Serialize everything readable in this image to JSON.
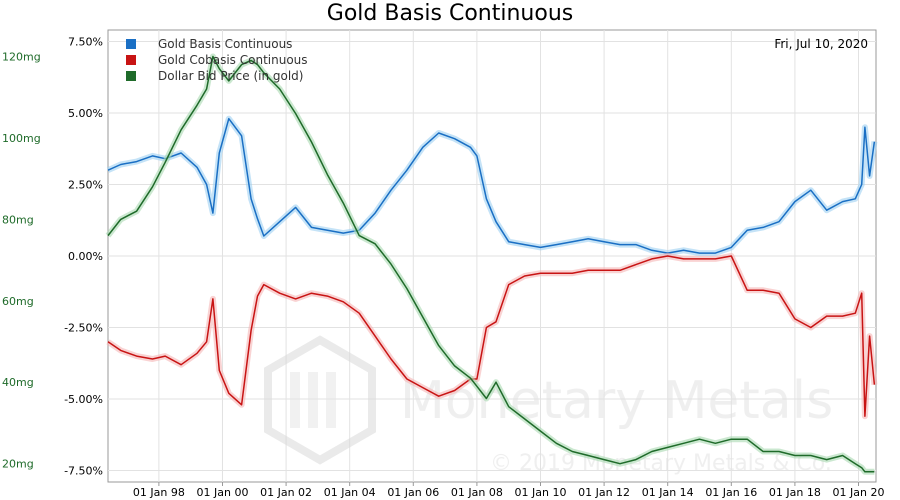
{
  "chart_data": {
    "type": "line",
    "title": "Gold Basis Continuous",
    "date_label": "Fri, Jul 10, 2020",
    "watermark": {
      "brand": "Monetary Metals",
      "copyright": "© 2019 Monetary Metals & Co."
    },
    "x_ticks": [
      "01 Jan 98",
      "01 Jan 00",
      "01 Jan 02",
      "01 Jan 04",
      "01 Jan 06",
      "01 Jan 08",
      "01 Jan 10",
      "01 Jan 12",
      "01 Jan 14",
      "01 Jan 16",
      "01 Jan 18",
      "01 Jan 20"
    ],
    "xlim": [
      1996.4,
      2020.55
    ],
    "y_right": {
      "ticks": [
        "7.50%",
        "5.00%",
        "2.50%",
        "0.00%",
        "-2.50%",
        "-5.00%",
        "-7.50%"
      ],
      "tick_values": [
        7.5,
        5.0,
        2.5,
        0.0,
        -2.5,
        -5.0,
        -7.5
      ],
      "range": [
        -7.9,
        7.9
      ]
    },
    "y_left": {
      "ticks": [
        "120mg",
        "100mg",
        "80mg",
        "60mg",
        "40mg",
        "20mg"
      ],
      "tick_values": [
        120,
        100,
        80,
        60,
        40,
        20
      ],
      "range": [
        15.5,
        126.5
      ]
    },
    "series": [
      {
        "name": "Gold Basis Continuous",
        "color": "#1a6fc4",
        "axis": "right",
        "x": [
          1996.4,
          1996.8,
          1997.3,
          1997.8,
          1998.2,
          1998.7,
          1999.2,
          1999.5,
          1999.7,
          1999.9,
          2000.2,
          2000.6,
          2000.9,
          2001.1,
          2001.3,
          2001.8,
          2002.3,
          2002.8,
          2003.3,
          2003.8,
          2004.3,
          2004.8,
          2005.3,
          2005.8,
          2006.3,
          2006.8,
          2007.3,
          2007.8,
          2008.0,
          2008.3,
          2008.6,
          2009.0,
          2009.5,
          2010.0,
          2010.5,
          2011.0,
          2011.5,
          2012.0,
          2012.5,
          2013.0,
          2013.5,
          2014.0,
          2014.5,
          2015.0,
          2015.5,
          2016.0,
          2016.5,
          2017.0,
          2017.5,
          2018.0,
          2018.5,
          2019.0,
          2019.5,
          2019.9,
          2020.1,
          2020.2,
          2020.35,
          2020.5
        ],
        "y": [
          3.0,
          3.2,
          3.3,
          3.5,
          3.4,
          3.6,
          3.1,
          2.5,
          1.5,
          3.6,
          4.8,
          4.2,
          2.0,
          1.3,
          0.7,
          1.2,
          1.7,
          1.0,
          0.9,
          0.8,
          0.9,
          1.5,
          2.3,
          3.0,
          3.8,
          4.3,
          4.1,
          3.8,
          3.5,
          2.0,
          1.2,
          0.5,
          0.4,
          0.3,
          0.4,
          0.5,
          0.6,
          0.5,
          0.4,
          0.4,
          0.2,
          0.1,
          0.2,
          0.1,
          0.1,
          0.3,
          0.9,
          1.0,
          1.2,
          1.9,
          2.3,
          1.6,
          1.9,
          2.0,
          2.5,
          4.5,
          2.8,
          4.0
        ]
      },
      {
        "name": "Gold Cobasis Continuous",
        "color": "#c81414",
        "axis": "right",
        "x": [
          1996.4,
          1996.8,
          1997.3,
          1997.8,
          1998.2,
          1998.7,
          1999.2,
          1999.5,
          1999.7,
          1999.9,
          2000.2,
          2000.6,
          2000.9,
          2001.1,
          2001.3,
          2001.8,
          2002.3,
          2002.8,
          2003.3,
          2003.8,
          2004.3,
          2004.8,
          2005.3,
          2005.8,
          2006.3,
          2006.8,
          2007.3,
          2007.8,
          2008.0,
          2008.3,
          2008.6,
          2009.0,
          2009.5,
          2010.0,
          2010.5,
          2011.0,
          2011.5,
          2012.0,
          2012.5,
          2013.0,
          2013.5,
          2014.0,
          2014.5,
          2015.0,
          2015.5,
          2016.0,
          2016.5,
          2017.0,
          2017.5,
          2018.0,
          2018.5,
          2019.0,
          2019.5,
          2019.9,
          2020.1,
          2020.2,
          2020.35,
          2020.5
        ],
        "y": [
          -3.0,
          -3.3,
          -3.5,
          -3.6,
          -3.5,
          -3.8,
          -3.4,
          -3.0,
          -1.5,
          -4.0,
          -4.8,
          -5.2,
          -2.6,
          -1.4,
          -1.0,
          -1.3,
          -1.5,
          -1.3,
          -1.4,
          -1.6,
          -2.0,
          -2.8,
          -3.6,
          -4.3,
          -4.6,
          -4.9,
          -4.7,
          -4.3,
          -4.3,
          -2.5,
          -2.3,
          -1.0,
          -0.7,
          -0.6,
          -0.6,
          -0.6,
          -0.5,
          -0.5,
          -0.5,
          -0.3,
          -0.1,
          0.0,
          -0.1,
          -0.1,
          -0.1,
          0.0,
          -1.2,
          -1.2,
          -1.3,
          -2.2,
          -2.5,
          -2.1,
          -2.1,
          -2.0,
          -1.3,
          -5.6,
          -2.8,
          -4.5
        ]
      },
      {
        "name": "Dollar Bid Price (in gold)",
        "color": "#1f6b2a",
        "axis": "left",
        "x": [
          1996.4,
          1996.8,
          1997.3,
          1997.8,
          1998.2,
          1998.7,
          1999.2,
          1999.5,
          1999.7,
          1999.9,
          2000.2,
          2000.6,
          2000.9,
          2001.1,
          2001.3,
          2001.8,
          2002.3,
          2002.8,
          2003.3,
          2003.8,
          2004.3,
          2004.8,
          2005.3,
          2005.8,
          2006.3,
          2006.8,
          2007.3,
          2007.8,
          2008.0,
          2008.3,
          2008.6,
          2009.0,
          2009.5,
          2010.0,
          2010.5,
          2011.0,
          2011.5,
          2012.0,
          2012.5,
          2013.0,
          2013.5,
          2014.0,
          2014.5,
          2015.0,
          2015.5,
          2016.0,
          2016.5,
          2017.0,
          2017.5,
          2018.0,
          2018.5,
          2019.0,
          2019.5,
          2019.9,
          2020.1,
          2020.2,
          2020.35,
          2020.5
        ],
        "y": [
          76,
          80,
          82,
          88,
          94,
          102,
          108,
          112,
          120,
          117,
          114,
          118,
          119,
          118,
          116,
          112,
          106,
          99,
          91,
          84,
          76,
          74,
          69,
          63,
          56,
          49,
          44,
          41,
          39,
          36,
          40,
          34,
          31,
          28,
          25,
          23,
          22,
          21,
          20,
          21,
          23,
          24,
          25,
          26,
          25,
          26,
          26,
          23,
          23,
          22,
          22,
          21,
          22,
          20,
          19,
          18,
          18,
          18
        ]
      }
    ]
  }
}
